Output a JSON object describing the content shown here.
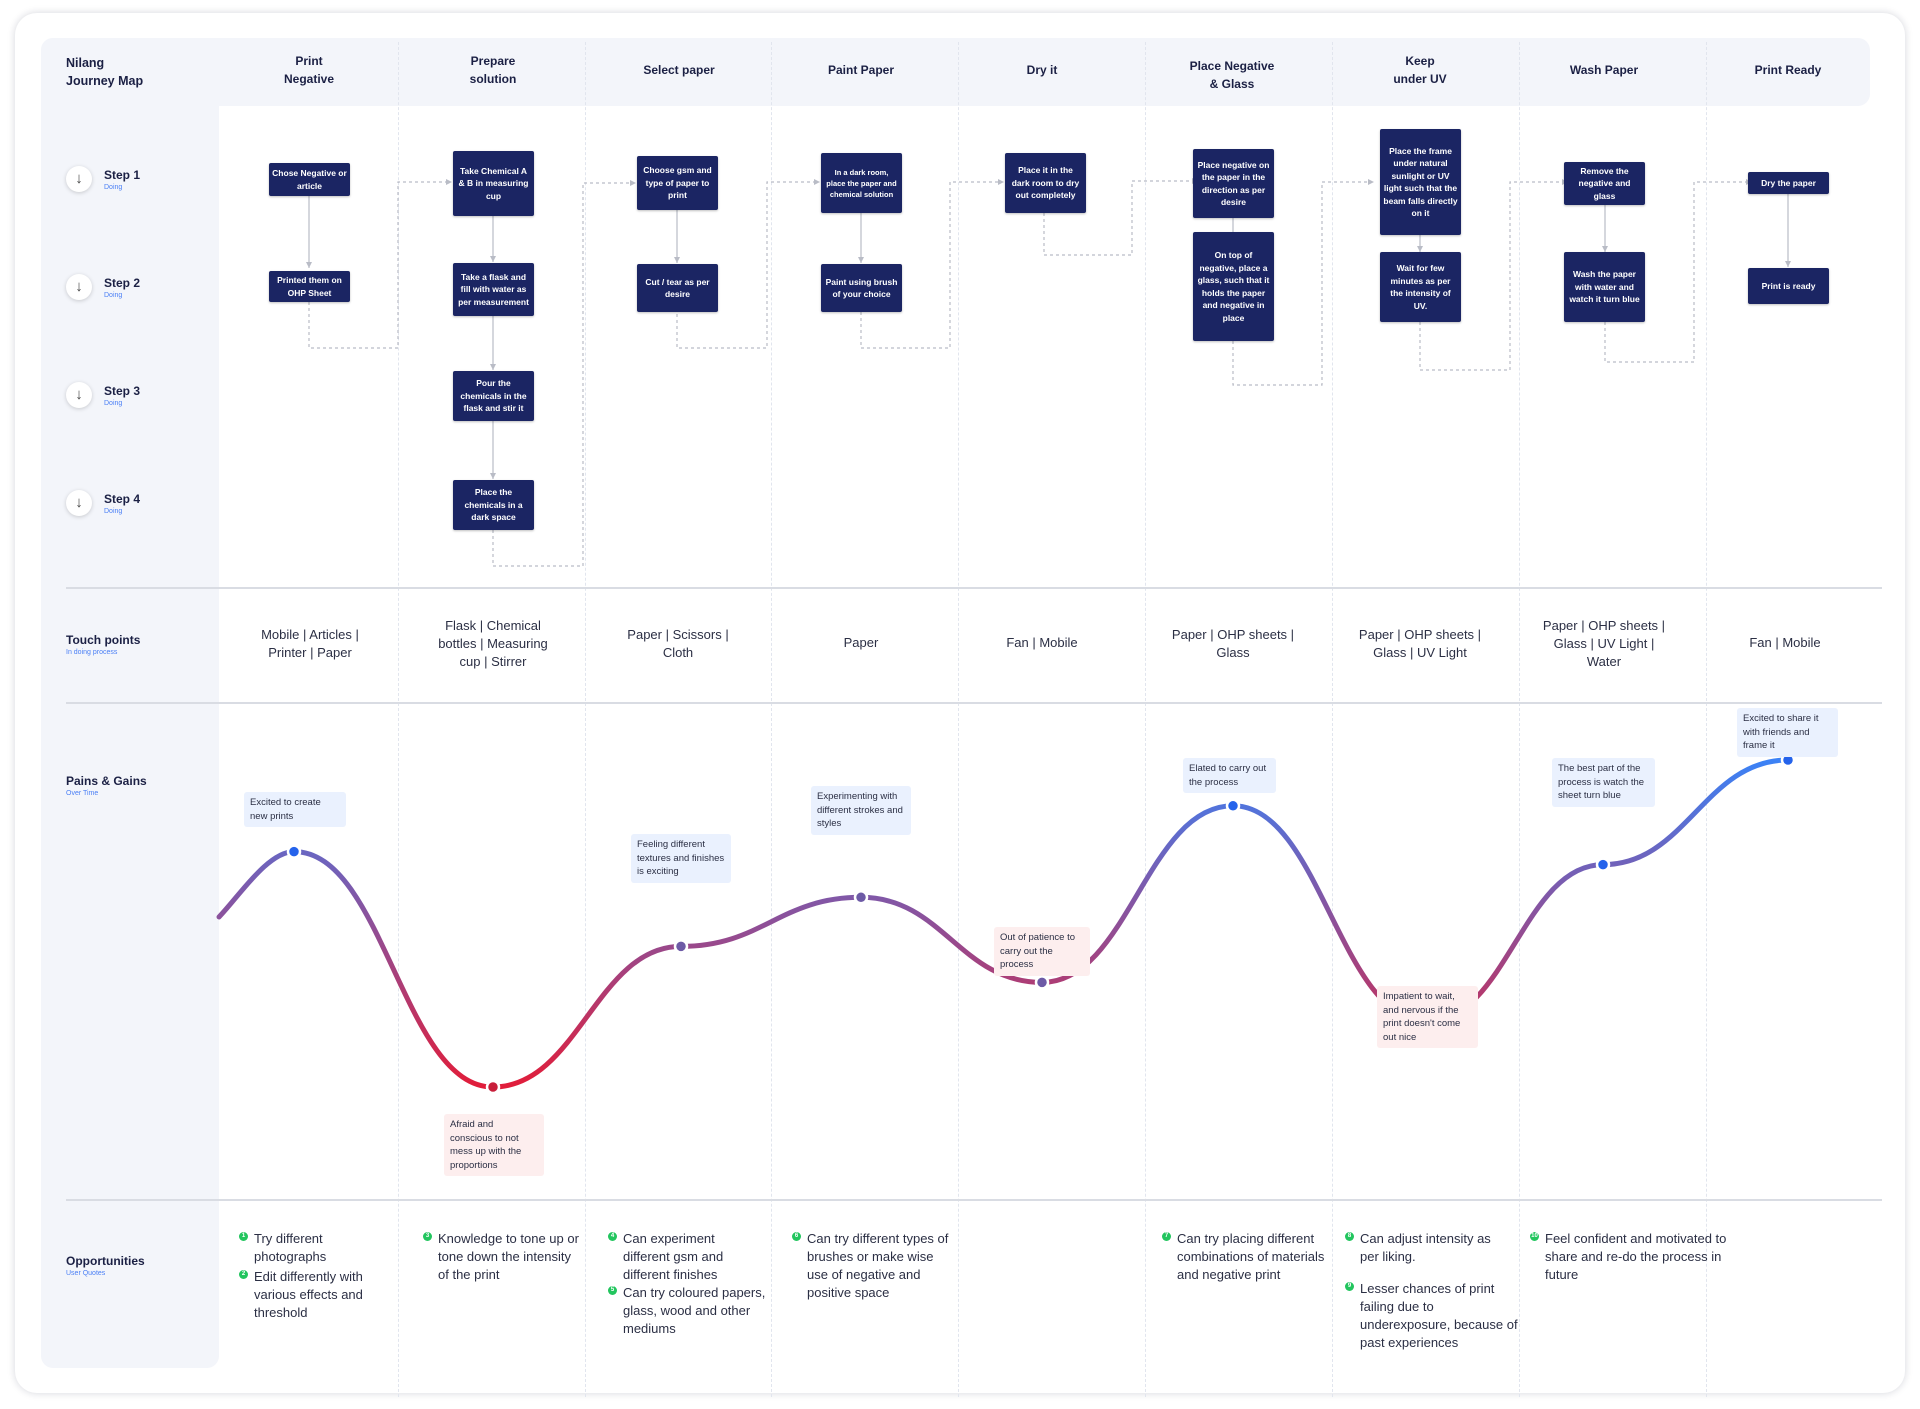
{
  "title": {
    "line1": "Nilang",
    "line2": "Journey Map"
  },
  "columns": [
    {
      "line1": "Print",
      "line2": "Negative"
    },
    {
      "line1": "Prepare",
      "line2": "solution"
    },
    {
      "line1": "Select paper",
      "line2": ""
    },
    {
      "line1": "Paint Paper",
      "line2": ""
    },
    {
      "line1": "Dry it",
      "line2": ""
    },
    {
      "line1": "Place Negative",
      "line2": "& Glass"
    },
    {
      "line1": "Keep",
      "line2": "under UV"
    },
    {
      "line1": "Wash Paper",
      "line2": ""
    },
    {
      "line1": "Print Ready",
      "line2": ""
    }
  ],
  "steps": [
    {
      "label": "Step 1",
      "sub": "Doing"
    },
    {
      "label": "Step 2",
      "sub": "Doing"
    },
    {
      "label": "Step 3",
      "sub": "Doing"
    },
    {
      "label": "Step 4",
      "sub": "Doing"
    }
  ],
  "step_boxes": [
    "Chose Negative or article",
    "Printed them on OHP Sheet",
    "Take Chemical A & B in measuring cup",
    "Take a flask and fill with water as per measurement",
    "Pour the chemicals in the flask and stir it",
    "Place the chemicals in a dark space",
    "Choose gsm and type of paper to print",
    "Cut / tear as per desire",
    "In a dark room, place the paper and chemical solution",
    "Paint using brush of your choice",
    "Place it in the dark room to dry out completely",
    "Place negative on the paper in the direction as per desire",
    "On top of negative, place a glass, such that it holds the paper and negative in place",
    "Place the frame under natural sunlight or UV light such that the beam falls directly on it",
    "Wait for few minutes as per the intensity of UV.",
    "Remove the negative and glass",
    "Wash the paper with water and watch it turn blue",
    "Dry the paper",
    "Print is ready"
  ],
  "touch_points": {
    "label": "Touch points",
    "sub": "In doing process",
    "items": [
      {
        "l1": "Mobile | Articles |",
        "l2": "Printer | Paper",
        "l3": ""
      },
      {
        "l1": "Flask | Chemical",
        "l2": "bottles | Measuring",
        "l3": "cup | Stirrer"
      },
      {
        "l1": "Paper | Scissors |",
        "l2": "Cloth",
        "l3": ""
      },
      {
        "l1": "Paper",
        "l2": "",
        "l3": ""
      },
      {
        "l1": "Fan | Mobile",
        "l2": "",
        "l3": ""
      },
      {
        "l1": "Paper | OHP sheets |",
        "l2": "Glass",
        "l3": ""
      },
      {
        "l1": "Paper | OHP sheets |",
        "l2": "Glass | UV Light",
        "l3": ""
      },
      {
        "l1": "Paper | OHP sheets |",
        "l2": "Glass | UV Light |",
        "l3": "Water"
      },
      {
        "l1": "Fan | Mobile",
        "l2": "",
        "l3": ""
      }
    ]
  },
  "pains_gains": {
    "label": "Pains & Gains",
    "sub": "Over Time",
    "colors": {
      "gain": "#3b82f6",
      "pain": "#e11d3a"
    },
    "levels": [
      0.72,
      0.0,
      0.43,
      0.58,
      0.32,
      0.86,
      0.2,
      0.68,
      1.0
    ],
    "notes": [
      "Excited to create new prints",
      "Afraid and conscious to not mess up with the proportions",
      "Feeling different textures and finishes is exciting",
      "Experimenting with different strokes and styles",
      "Out of patience to carry out the process",
      "Elated to carry out the process",
      "Impatient to wait, and nervous if the print doesn't come out nice",
      "The best part of the process is watch the sheet turn blue",
      "Excited to share it with friends and frame it"
    ]
  },
  "opportunities": {
    "label": "Opportunities",
    "sub": "User Quotes",
    "items": [
      {
        "num": "1",
        "text": "Try different photographs"
      },
      {
        "num": "2",
        "text": "Edit differently with various effects and threshold"
      },
      {
        "num": "3",
        "text": "Knowledge to tone up or tone down the intensity of the print"
      },
      {
        "num": "4",
        "text": "Can experiment different gsm and different finishes"
      },
      {
        "num": "5",
        "text": "Can try coloured papers, glass, wood and other mediums"
      },
      {
        "num": "6",
        "text": "Can try different types of brushes or make wise use of negative and positive space"
      },
      {
        "num": "7",
        "text": "Can try placing different combinations of materials and negative print"
      },
      {
        "num": "8",
        "text": "Can adjust intensity as per liking."
      },
      {
        "num": "9",
        "text": "Lesser chances of print failing due to underexposure, because of past experiences"
      },
      {
        "num": "10",
        "text": "Feel confident and motivated to share and re-do the process in future"
      }
    ]
  }
}
